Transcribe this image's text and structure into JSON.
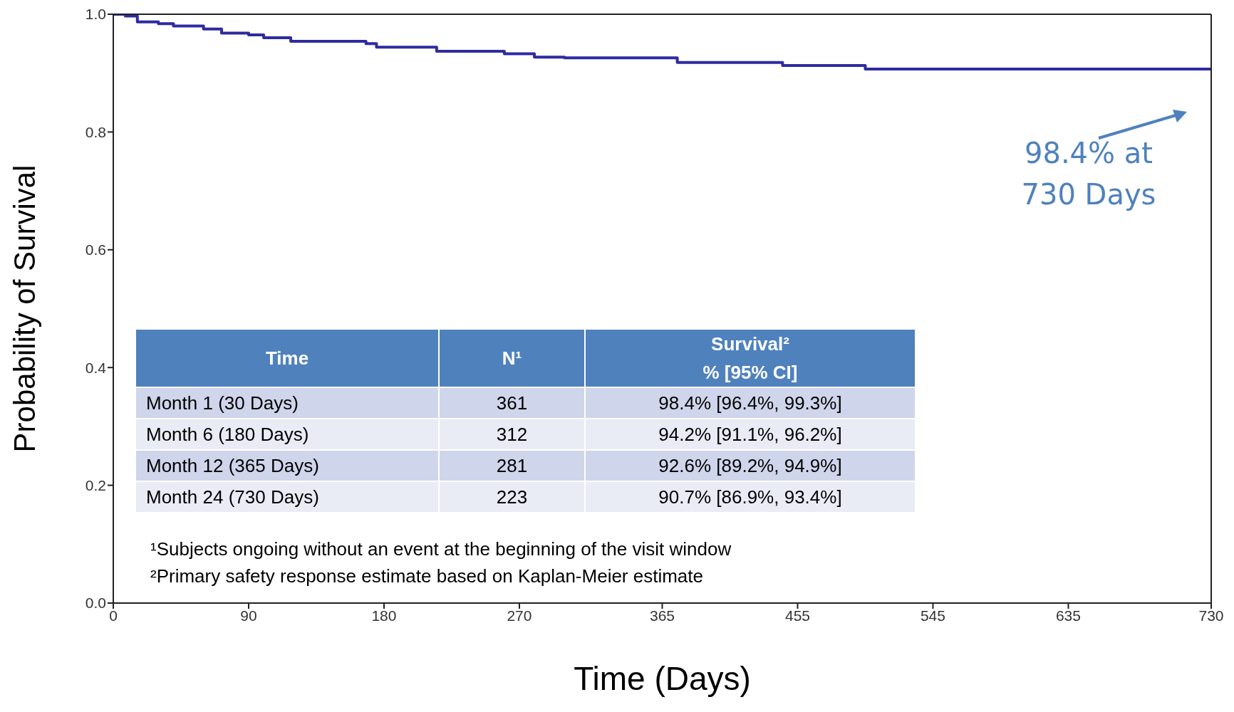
{
  "chart_data": {
    "type": "step",
    "xlabel": "Time (Days)",
    "ylabel": "Probability of Survival",
    "x": [
      0,
      8,
      16,
      30,
      40,
      60,
      72,
      90,
      100,
      118,
      168,
      175,
      215,
      260,
      280,
      300,
      375,
      445,
      500,
      730
    ],
    "series": [
      {
        "color": "#2e2ba0",
        "values": [
          1.0,
          0.997,
          0.987,
          0.984,
          0.98,
          0.975,
          0.968,
          0.965,
          0.96,
          0.954,
          0.95,
          0.944,
          0.937,
          0.933,
          0.927,
          0.926,
          0.918,
          0.913,
          0.907,
          0.907
        ]
      }
    ],
    "xlim": [
      0,
      730
    ],
    "xticks": [
      0,
      90,
      180,
      270,
      365,
      455,
      545,
      635,
      730
    ],
    "ylim": [
      0,
      1
    ],
    "yticks": [
      {
        "value": 0,
        "label": "0.0"
      },
      {
        "value": 0.2,
        "label": "0.2"
      },
      {
        "value": 0.4,
        "label": "0.4"
      },
      {
        "value": 0.6,
        "label": "0.6"
      },
      {
        "value": 0.8,
        "label": "0.8"
      },
      {
        "value": 1,
        "label": "1.0"
      }
    ],
    "marker": "none",
    "line_style": "solid",
    "annotations": [
      "98.4% at 730 Days",
      "Time",
      "N¹",
      "Survival²\n% [95% CI]",
      "Month 1 (30 Days)",
      "361",
      "98.4% [96.4%, 99.3%]",
      "Month 6 (180 Days)",
      "312",
      "94.2% [91.1%, 96.2%]",
      "Month 12 (365 Days)",
      "281",
      "92.6% [89.2%, 94.9%]",
      "Month 24 (730 Days)",
      "223",
      "90.7% [86.9%, 93.4%]",
      "¹Subjects ongoing without an event at the beginning of the visit window",
      "²Primary safety response estimate based on Kaplan-Meier estimate"
    ]
  }
}
